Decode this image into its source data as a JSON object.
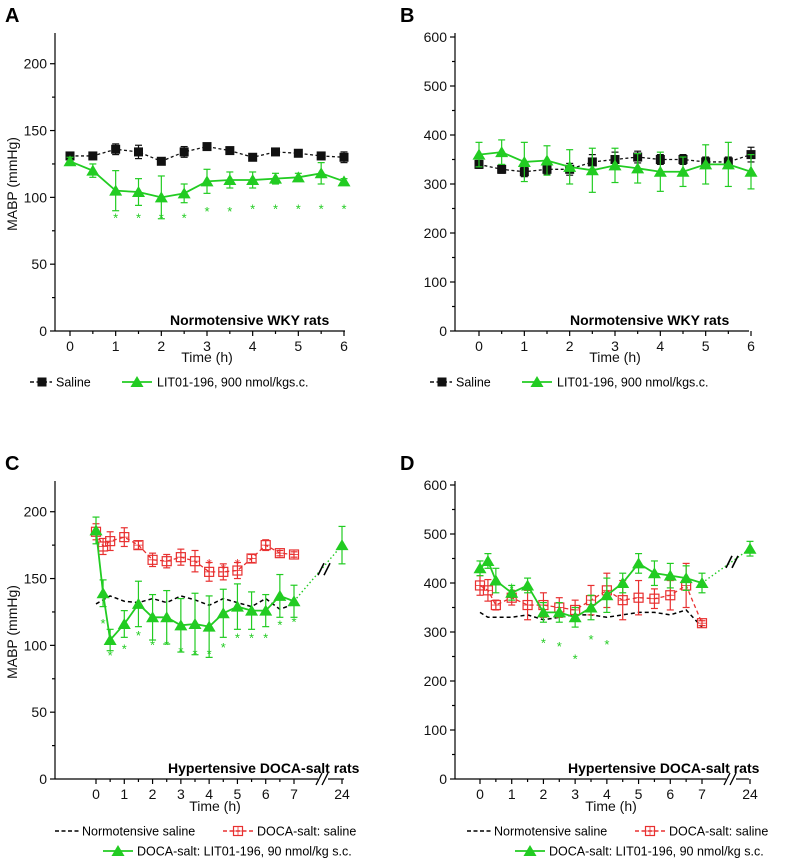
{
  "colors": {
    "saline": "#111111",
    "lit": "#22cc22",
    "doca": "#e83030",
    "black": "#000000"
  },
  "chart_data": [
    {
      "panel": "A",
      "type": "line",
      "ylabel": "MABP (mmHg)",
      "xlabel": "Time (h)",
      "ylim": [
        0,
        220
      ],
      "yticks": [
        0,
        50,
        100,
        150,
        200
      ],
      "xticks": [
        0,
        1,
        2,
        3,
        4,
        5,
        6
      ],
      "annotation": "Normotensive  WKY rats",
      "legend": [
        "Saline",
        "LIT01-196, 900 nmol/kgs.c."
      ],
      "series": [
        {
          "name": "Saline",
          "style": "saline",
          "x": [
            0,
            0.5,
            1,
            1.5,
            2,
            2.5,
            3,
            3.5,
            4,
            4.5,
            5,
            5.5,
            6
          ],
          "y": [
            131,
            131,
            136,
            134,
            127,
            134,
            138,
            135,
            130,
            134,
            133,
            131,
            130
          ],
          "err": [
            2,
            2,
            4,
            5,
            2,
            4,
            2,
            2,
            2,
            2,
            2,
            2,
            4
          ]
        },
        {
          "name": "LIT01-196, 900 nmol/kgs.c.",
          "style": "lit",
          "x": [
            0,
            0.5,
            1,
            1.5,
            2,
            2.5,
            3,
            3.5,
            4,
            4.5,
            5,
            5.5,
            6
          ],
          "y": [
            127,
            120,
            105,
            104,
            100,
            103,
            112,
            113,
            113,
            114,
            115,
            118,
            112
          ],
          "err": [
            3,
            5,
            15,
            10,
            16,
            7,
            9,
            6,
            6,
            4,
            3,
            8,
            2
          ]
        }
      ],
      "significance": [
        {
          "x": 1,
          "y": 87,
          "color": "lit"
        },
        {
          "x": 1.5,
          "y": 87,
          "color": "lit"
        },
        {
          "x": 2,
          "y": 87,
          "color": "lit"
        },
        {
          "x": 2.5,
          "y": 87,
          "color": "lit"
        },
        {
          "x": 3,
          "y": 92,
          "color": "lit"
        },
        {
          "x": 3.5,
          "y": 92,
          "color": "lit"
        },
        {
          "x": 4,
          "y": 94,
          "color": "lit"
        },
        {
          "x": 4.5,
          "y": 94,
          "color": "lit"
        },
        {
          "x": 5,
          "y": 94,
          "color": "lit"
        },
        {
          "x": 5.5,
          "y": 94,
          "color": "lit"
        },
        {
          "x": 6,
          "y": 94,
          "color": "lit"
        }
      ]
    },
    {
      "panel": "B",
      "type": "line",
      "ylabel": "",
      "xlabel": "Time (h)",
      "ylim": [
        0,
        600
      ],
      "yticks": [
        0,
        100,
        200,
        300,
        400,
        500,
        600
      ],
      "xticks": [
        0,
        1,
        2,
        3,
        4,
        5,
        6
      ],
      "annotation": "Normotensive  WKY rats",
      "legend": [
        "Saline",
        "LIT01-196, 900 nmol/kgs.c."
      ],
      "series": [
        {
          "name": "Saline",
          "style": "saline",
          "x": [
            0,
            0.5,
            1,
            1.5,
            2,
            2.5,
            3,
            3.5,
            4,
            4.5,
            5,
            5.5,
            6
          ],
          "y": [
            340,
            330,
            325,
            330,
            330,
            345,
            350,
            355,
            350,
            350,
            345,
            345,
            360
          ],
          "err": [
            8,
            8,
            10,
            10,
            12,
            15,
            15,
            12,
            10,
            10,
            10,
            10,
            15
          ]
        },
        {
          "name": "LIT01-196, 900 nmol/kgs.c.",
          "style": "lit",
          "x": [
            0,
            0.5,
            1,
            1.5,
            2,
            2.5,
            3,
            3.5,
            4,
            4.5,
            5,
            5.5,
            6
          ],
          "y": [
            360,
            365,
            345,
            348,
            335,
            328,
            338,
            332,
            325,
            325,
            340,
            340,
            325
          ],
          "err": [
            25,
            25,
            40,
            30,
            35,
            45,
            35,
            30,
            40,
            30,
            40,
            45,
            35
          ]
        }
      ],
      "significance": []
    },
    {
      "panel": "C",
      "type": "line",
      "ylabel": "MABP (mmHg)",
      "xlabel": "Time (h)",
      "ylim": [
        0,
        220
      ],
      "yticks": [
        0,
        50,
        100,
        150,
        200
      ],
      "xticks": [
        0,
        1,
        2,
        3,
        4,
        5,
        6,
        7,
        24
      ],
      "break_after": 7,
      "annotation": "Hypertensive DOCA-salt rats",
      "legend": [
        "Normotensive  saline",
        "DOCA-salt: saline",
        "DOCA-salt: LIT01-196,  90 nmol/kg s.c."
      ],
      "series": [
        {
          "name": "Normotensive  saline",
          "style": "norm",
          "x": [
            0,
            0.5,
            1,
            1.5,
            2,
            2.5,
            3,
            3.5,
            4,
            4.5,
            5,
            5.5,
            6,
            6.5,
            7
          ],
          "y": [
            131,
            137,
            133,
            132,
            135,
            132,
            137,
            134,
            130,
            135,
            132,
            129,
            135,
            127,
            131
          ],
          "err": []
        },
        {
          "name": "DOCA-salt: saline",
          "style": "doca",
          "x": [
            0,
            0.25,
            0.5,
            1,
            1.5,
            2,
            2.5,
            3,
            3.5,
            4,
            4.5,
            5,
            5.5,
            6,
            6.5,
            7
          ],
          "y": [
            185,
            174,
            178,
            181,
            175,
            164,
            163,
            166,
            163,
            155,
            155,
            156,
            165,
            175,
            169,
            168
          ],
          "err": [
            6,
            6,
            7,
            7,
            3,
            5,
            5,
            6,
            8,
            7,
            6,
            6,
            3,
            4,
            2,
            2
          ]
        },
        {
          "name": "DOCA-salt: LIT01-196,  90 nmol/kg s.c.",
          "style": "lit",
          "x": [
            0,
            0.25,
            0.5,
            1,
            1.5,
            2,
            2.5,
            3,
            3.5,
            4,
            4.5,
            5,
            5.5,
            6,
            6.5,
            7,
            24
          ],
          "y": [
            186,
            139,
            104,
            116,
            131,
            121,
            121,
            115,
            116,
            114,
            124,
            129,
            126,
            126,
            137,
            133,
            175
          ],
          "err": [
            10,
            10,
            8,
            10,
            17,
            17,
            20,
            20,
            23,
            23,
            18,
            17,
            14,
            12,
            16,
            12,
            14
          ]
        }
      ],
      "significance": [
        {
          "x": 0.25,
          "y": 119,
          "color": "lit"
        },
        {
          "x": 0.5,
          "y": 95,
          "color": "lit"
        },
        {
          "x": 1,
          "y": 100,
          "color": "lit"
        },
        {
          "x": 1.5,
          "y": 110,
          "color": "lit"
        },
        {
          "x": 2,
          "y": 103,
          "color": "lit"
        },
        {
          "x": 2.5,
          "y": 103,
          "color": "lit"
        },
        {
          "x": 3,
          "y": 98,
          "color": "lit"
        },
        {
          "x": 3.5,
          "y": 96,
          "color": "lit"
        },
        {
          "x": 4,
          "y": 96,
          "color": "lit"
        },
        {
          "x": 4.5,
          "y": 101,
          "color": "lit"
        },
        {
          "x": 5,
          "y": 108,
          "color": "lit"
        },
        {
          "x": 5.5,
          "y": 108,
          "color": "lit"
        },
        {
          "x": 6,
          "y": 108,
          "color": "lit"
        },
        {
          "x": 6.5,
          "y": 118,
          "color": "lit"
        },
        {
          "x": 7,
          "y": 120,
          "color": "lit"
        },
        {
          "x": 4,
          "y": 164,
          "color": "doca"
        },
        {
          "x": 4.5,
          "y": 160,
          "color": "doca"
        },
        {
          "x": 5,
          "y": 164,
          "color": "doca"
        }
      ]
    },
    {
      "panel": "D",
      "type": "line",
      "ylabel": "",
      "xlabel": "Time (h)",
      "ylim": [
        0,
        600
      ],
      "yticks": [
        0,
        100,
        200,
        300,
        400,
        500,
        600
      ],
      "xticks": [
        0,
        1,
        2,
        3,
        4,
        5,
        6,
        7,
        24
      ],
      "break_after": 7,
      "annotation": "Hypertensive DOCA-salt rats",
      "legend": [
        "Normotensive  saline",
        "DOCA-salt: saline",
        "DOCA-salt: LIT01-196,  90 nmol/kg s.c."
      ],
      "series": [
        {
          "name": "Normotensive  saline",
          "style": "norm",
          "x": [
            0,
            0.25,
            0.5,
            1,
            1.5,
            2,
            2.5,
            3,
            3.5,
            4,
            4.5,
            5,
            5.5,
            6,
            6.5,
            7
          ],
          "y": [
            340,
            330,
            330,
            330,
            335,
            325,
            330,
            335,
            335,
            330,
            335,
            340,
            340,
            335,
            345,
            310
          ],
          "err": []
        },
        {
          "name": "DOCA-salt: saline",
          "style": "doca",
          "x": [
            0,
            0.25,
            0.5,
            1,
            1.5,
            2,
            2.5,
            3,
            3.5,
            4,
            4.5,
            5,
            5.5,
            6,
            6.5,
            7
          ],
          "y": [
            395,
            385,
            355,
            370,
            355,
            355,
            350,
            345,
            365,
            385,
            365,
            370,
            368,
            375,
            395,
            318
          ],
          "err": [
            20,
            22,
            10,
            15,
            30,
            25,
            20,
            20,
            30,
            35,
            40,
            35,
            20,
            30,
            45,
            5
          ]
        },
        {
          "name": "DOCA-salt: LIT01-196,  90 nmol/kg s.c.",
          "style": "lit",
          "x": [
            0,
            0.25,
            0.5,
            1,
            1.5,
            2,
            2.5,
            3,
            3.5,
            4,
            4.5,
            5,
            5.5,
            6,
            6.5,
            7,
            24
          ],
          "y": [
            430,
            445,
            405,
            380,
            395,
            340,
            340,
            330,
            350,
            375,
            400,
            440,
            420,
            415,
            410,
            400,
            470
          ],
          "err": [
            15,
            15,
            25,
            15,
            15,
            20,
            20,
            20,
            25,
            35,
            20,
            20,
            25,
            25,
            25,
            20,
            15
          ]
        }
      ],
      "significance": [
        {
          "x": 1,
          "y": 397,
          "color": "lit"
        },
        {
          "x": 2,
          "y": 285,
          "color": "lit"
        },
        {
          "x": 2.5,
          "y": 278,
          "color": "lit"
        },
        {
          "x": 3,
          "y": 252,
          "color": "lit"
        },
        {
          "x": 3.5,
          "y": 292,
          "color": "lit"
        },
        {
          "x": 4,
          "y": 282,
          "color": "lit"
        }
      ]
    }
  ]
}
